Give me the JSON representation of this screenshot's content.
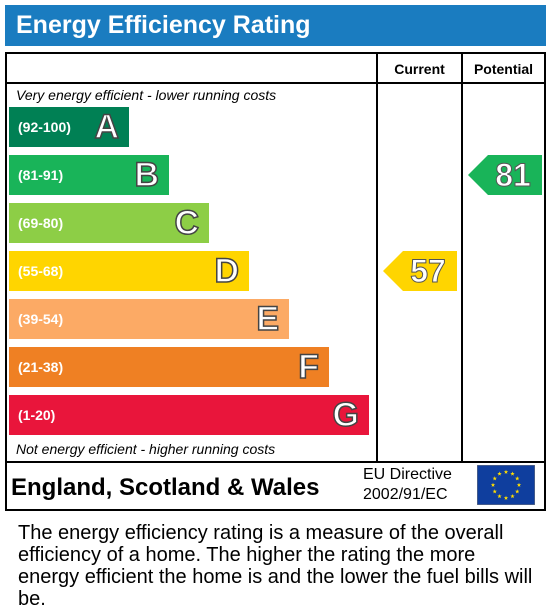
{
  "header": {
    "title": "Energy Efficiency Rating"
  },
  "chart_data": {
    "type": "bar",
    "columns": [
      "Current",
      "Potential"
    ],
    "top_note": "Very energy efficient - lower running costs",
    "bottom_note": "Not energy efficient - higher running costs",
    "bands": [
      {
        "letter": "A",
        "range": "(92-100)",
        "min": 92,
        "max": 100,
        "color": "#008054"
      },
      {
        "letter": "B",
        "range": "(81-91)",
        "min": 81,
        "max": 91,
        "color": "#19b459"
      },
      {
        "letter": "C",
        "range": "(69-80)",
        "min": 69,
        "max": 80,
        "color": "#8dce46"
      },
      {
        "letter": "D",
        "range": "(55-68)",
        "min": 55,
        "max": 68,
        "color": "#ffd500"
      },
      {
        "letter": "E",
        "range": "(39-54)",
        "min": 39,
        "max": 54,
        "color": "#fcaa65"
      },
      {
        "letter": "F",
        "range": "(21-38)",
        "min": 21,
        "max": 38,
        "color": "#ef8023"
      },
      {
        "letter": "G",
        "range": "(1-20)",
        "min": 1,
        "max": 20,
        "color": "#e9153b"
      }
    ],
    "current": {
      "value": "57",
      "band": "D",
      "color": "#ffd500"
    },
    "potential": {
      "value": "81",
      "band": "B",
      "color": "#19b459"
    }
  },
  "footer": {
    "region": "England, Scotland & Wales",
    "directive_line1": "EU Directive",
    "directive_line2": "2002/91/EC",
    "flag_icon": "eu-flag-icon"
  },
  "description": "The energy efficiency rating is a measure of the overall efficiency of a home. The higher the rating the more energy efficient the home is and the lower the fuel bills will be."
}
